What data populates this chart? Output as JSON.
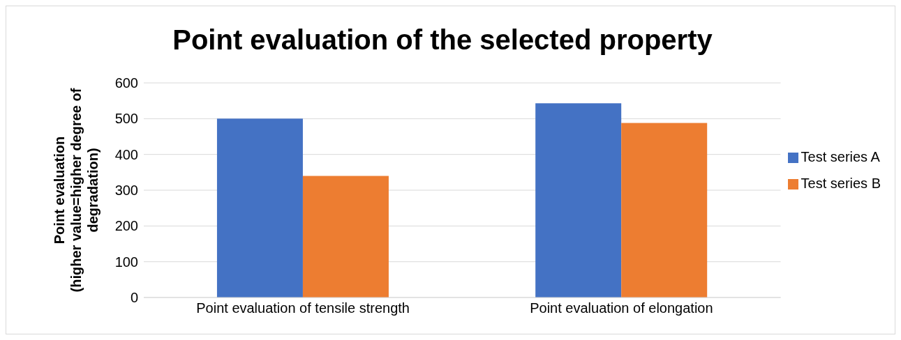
{
  "chart_data": {
    "type": "bar",
    "title": "Point evaluation of the selected property",
    "ylabel": "Point evaluation\n(higher value=higher degree of\ndegradation)",
    "categories": [
      "Point evaluation of tensile strength",
      "Point evaluation of elongation"
    ],
    "series": [
      {
        "name": "Test series A",
        "color": "#4472c4",
        "values": [
          500,
          543
        ]
      },
      {
        "name": "Test series B",
        "color": "#ed7d31",
        "values": [
          340,
          488
        ]
      }
    ],
    "ylim": [
      0,
      600
    ],
    "yticks": [
      0,
      100,
      200,
      300,
      400,
      500,
      600
    ],
    "grid": "y",
    "legend": "right"
  }
}
